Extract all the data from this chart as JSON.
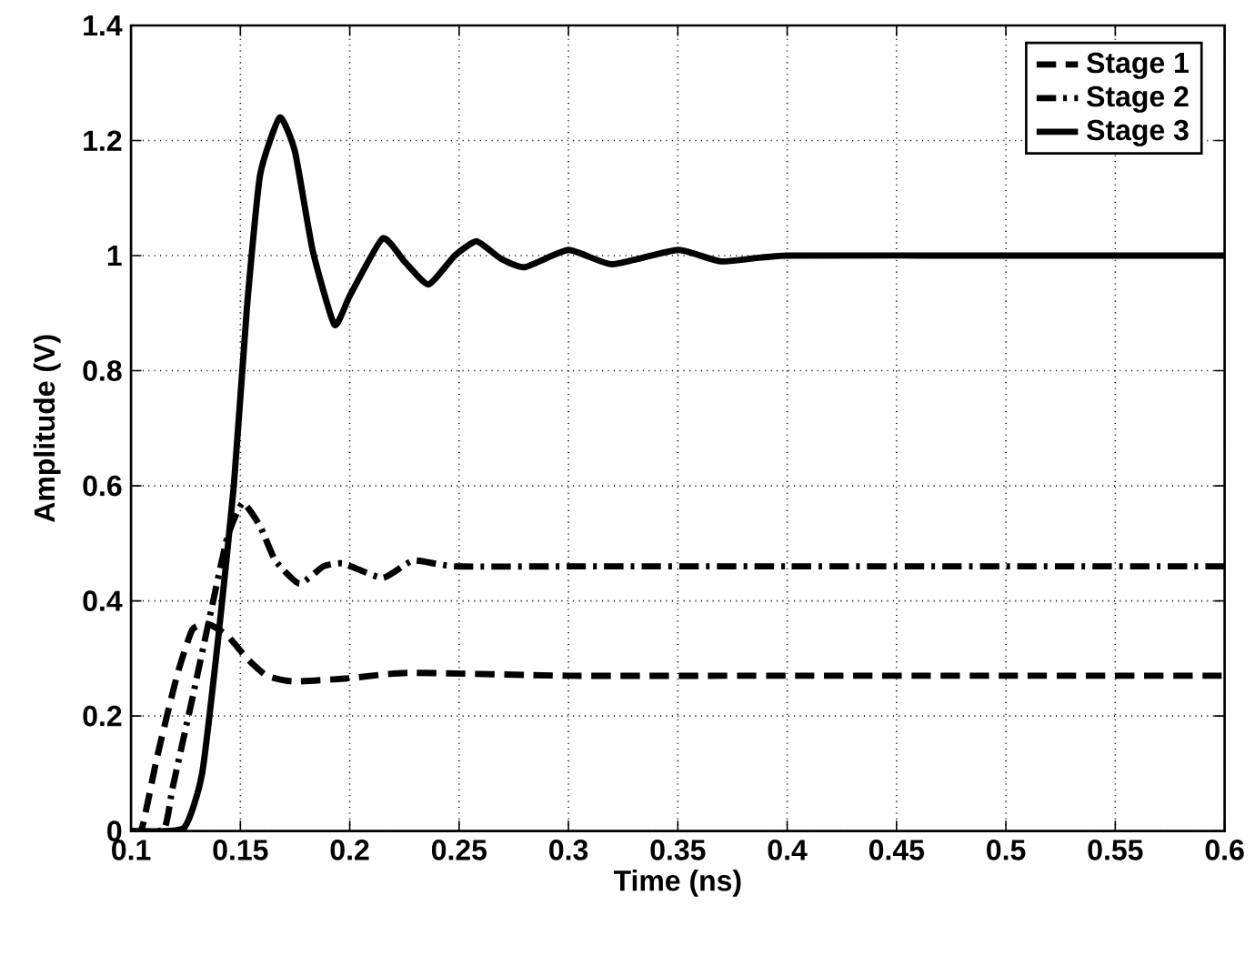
{
  "chart_data": {
    "type": "line",
    "xlabel": "Time (ns)",
    "ylabel": "Amplitude (V)",
    "xlim": [
      0.1,
      0.6
    ],
    "ylim": [
      0,
      1.4
    ],
    "xticks": [
      0.1,
      0.15,
      0.2,
      0.25,
      0.3,
      0.35,
      0.4,
      0.45,
      0.5,
      0.55,
      0.6
    ],
    "yticks": [
      0,
      0.2,
      0.4,
      0.6,
      0.8,
      1,
      1.2,
      1.4
    ],
    "grid": true,
    "legend": "top right",
    "series": [
      {
        "name": "Stage 1",
        "color": "#000000",
        "line_style": "dashed",
        "x": [
          0.1,
          0.105,
          0.112,
          0.121,
          0.128,
          0.135,
          0.144,
          0.153,
          0.162,
          0.174,
          0.198,
          0.227,
          0.3,
          0.4,
          0.5,
          0.6
        ],
        "values": [
          0,
          0.005,
          0.13,
          0.27,
          0.35,
          0.36,
          0.34,
          0.3,
          0.27,
          0.26,
          0.265,
          0.275,
          0.27,
          0.27,
          0.27,
          0.27
        ]
      },
      {
        "name": "Stage 2",
        "color": "#000000",
        "line_style": "dashdot",
        "x": [
          0.1,
          0.115,
          0.119,
          0.128,
          0.137,
          0.144,
          0.151,
          0.159,
          0.166,
          0.177,
          0.188,
          0.197,
          0.215,
          0.229,
          0.248,
          0.3,
          0.4,
          0.5,
          0.6
        ],
        "values": [
          0,
          0.003,
          0.075,
          0.23,
          0.39,
          0.51,
          0.57,
          0.53,
          0.47,
          0.43,
          0.46,
          0.465,
          0.44,
          0.47,
          0.46,
          0.46,
          0.46,
          0.46,
          0.46
        ]
      },
      {
        "name": "Stage 3",
        "color": "#000000",
        "line_style": "solid",
        "x": [
          0.1,
          0.124,
          0.1325,
          0.14,
          0.147,
          0.153,
          0.159,
          0.168,
          0.175,
          0.183,
          0.193,
          0.2,
          0.215,
          0.225,
          0.236,
          0.248,
          0.258,
          0.269,
          0.28,
          0.3,
          0.32,
          0.35,
          0.37,
          0.4,
          0.5,
          0.6
        ],
        "values": [
          0,
          0.005,
          0.1,
          0.34,
          0.6,
          0.91,
          1.14,
          1.24,
          1.18,
          1.01,
          0.88,
          0.93,
          1.03,
          0.99,
          0.95,
          1.0,
          1.025,
          0.995,
          0.98,
          1.01,
          0.985,
          1.01,
          0.99,
          1.0,
          1.0,
          1.0
        ]
      }
    ]
  }
}
